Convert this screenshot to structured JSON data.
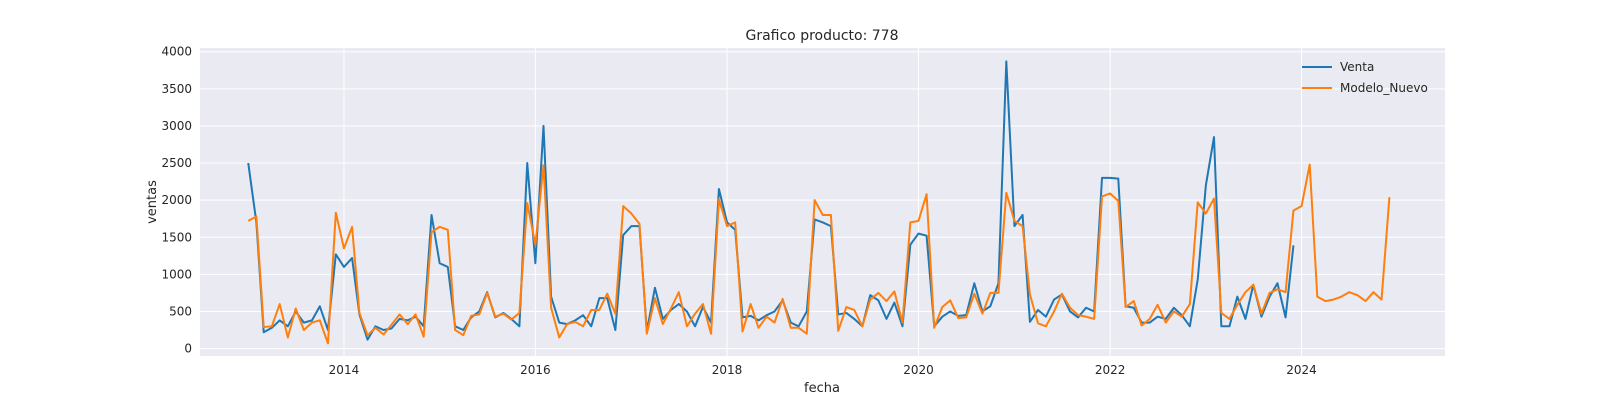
{
  "chart_data": {
    "type": "line",
    "title": "Grafico producto: 778",
    "xlabel": "fecha",
    "ylabel": "ventas",
    "x_ticks": [
      "2014",
      "2016",
      "2018",
      "2020",
      "2022",
      "2024"
    ],
    "y_ticks": [
      0,
      500,
      1000,
      1500,
      2000,
      2500,
      3000,
      3500,
      4000
    ],
    "ylim": [
      -100,
      4050
    ],
    "xlim": [
      "2012-07-01",
      "2025-07-01"
    ],
    "grid": true,
    "legend_position": "top-right",
    "start_date": "2013-01",
    "series": [
      {
        "name": "Venta",
        "color": "#1f77b4",
        "values": [
          2500,
          1700,
          220,
          280,
          380,
          300,
          500,
          350,
          380,
          570,
          250,
          1270,
          1100,
          1220,
          460,
          120,
          300,
          250,
          270,
          400,
          380,
          430,
          300,
          1800,
          1150,
          1100,
          300,
          250,
          420,
          500,
          760,
          420,
          480,
          400,
          300,
          2500,
          1150,
          3000,
          700,
          350,
          330,
          380,
          450,
          300,
          680,
          680,
          250,
          1530,
          1650,
          1650,
          230,
          820,
          400,
          520,
          600,
          500,
          300,
          560,
          350,
          2150,
          1700,
          1600,
          420,
          440,
          380,
          450,
          500,
          650,
          350,
          300,
          500,
          1740,
          1700,
          1650,
          460,
          480,
          400,
          300,
          720,
          650,
          400,
          620,
          300,
          1400,
          1550,
          1520,
          300,
          430,
          500,
          440,
          450,
          880,
          500,
          570,
          880,
          3870,
          1650,
          1800,
          360,
          520,
          430,
          660,
          730,
          500,
          420,
          550,
          500,
          2300,
          2300,
          2290,
          570,
          550,
          350,
          350,
          430,
          400,
          550,
          450,
          300,
          930,
          2200,
          2850,
          300,
          300,
          700,
          400,
          860,
          430,
          700,
          880,
          420,
          1390
        ]
      },
      {
        "name": "Modelo_Nuevo",
        "color": "#ff7f0e",
        "values": [
          1720,
          1780,
          290,
          300,
          600,
          150,
          540,
          250,
          350,
          380,
          70,
          1830,
          1350,
          1640,
          480,
          180,
          280,
          190,
          320,
          460,
          330,
          460,
          160,
          1570,
          1640,
          1600,
          250,
          180,
          440,
          460,
          750,
          430,
          470,
          390,
          480,
          1960,
          1400,
          2470,
          550,
          150,
          330,
          360,
          300,
          520,
          520,
          740,
          470,
          1920,
          1820,
          1680,
          200,
          680,
          330,
          540,
          760,
          300,
          470,
          600,
          200,
          2010,
          1650,
          1700,
          230,
          600,
          280,
          430,
          350,
          670,
          280,
          280,
          200,
          2000,
          1800,
          1800,
          240,
          560,
          520,
          300,
          660,
          750,
          640,
          770,
          350,
          1700,
          1720,
          2080,
          280,
          560,
          650,
          410,
          420,
          740,
          470,
          750,
          750,
          2100,
          1720,
          1650,
          730,
          340,
          300,
          500,
          740,
          550,
          450,
          430,
          400,
          2050,
          2090,
          1990,
          560,
          640,
          310,
          400,
          590,
          350,
          500,
          430,
          600,
          1970,
          1820,
          2020,
          480,
          400,
          590,
          760,
          860,
          470,
          750,
          800,
          760,
          1860,
          1920,
          2480,
          700,
          640,
          660,
          700,
          760,
          720,
          640,
          760,
          660,
          2040
        ]
      }
    ]
  }
}
